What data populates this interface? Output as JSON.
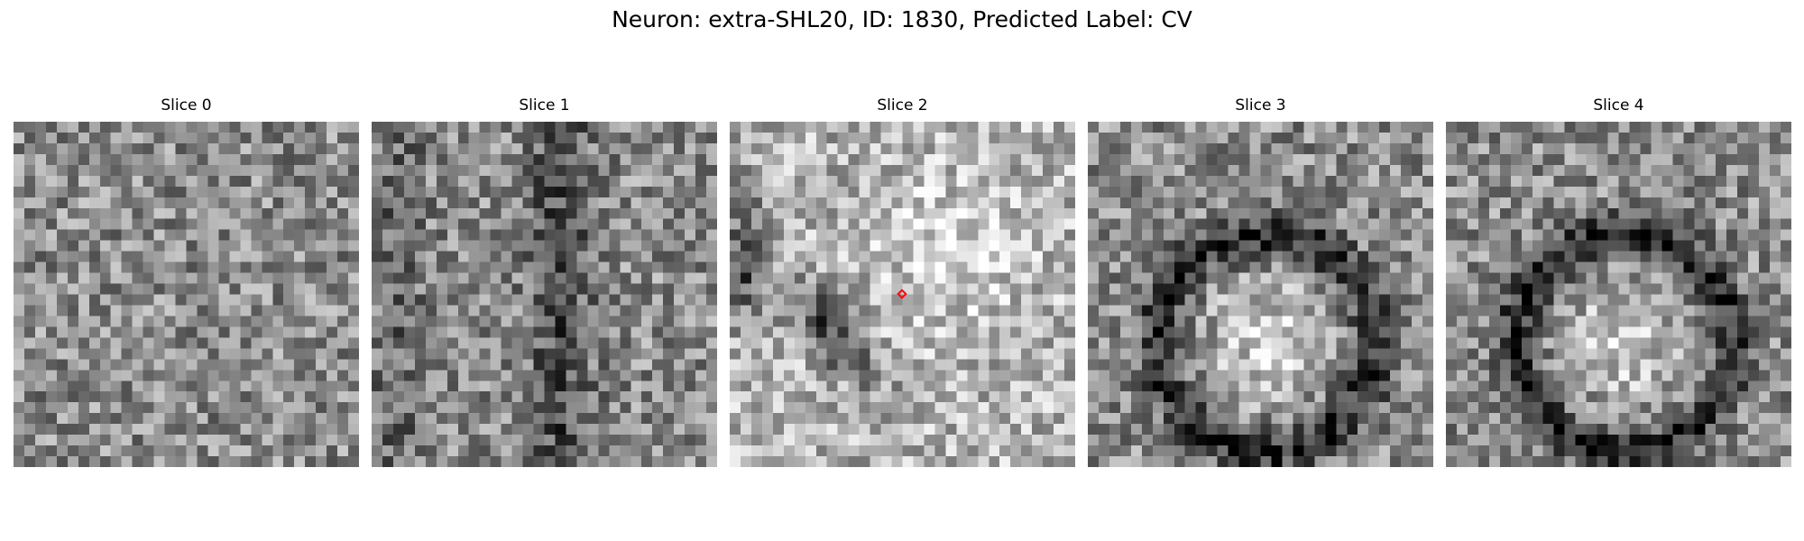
{
  "figure": {
    "title": "Neuron: extra-SHL20, ID: 1830, Predicted Label: CV"
  },
  "panels": [
    {
      "title": "Slice 0",
      "pattern": "noise",
      "seed": 11,
      "marker": false
    },
    {
      "title": "Slice 1",
      "pattern": "noise-dark-vertical",
      "seed": 23,
      "marker": false
    },
    {
      "title": "Slice 2",
      "pattern": "bright-blob-dark-band",
      "seed": 37,
      "marker": true
    },
    {
      "title": "Slice 3",
      "pattern": "dark-ring",
      "seed": 41,
      "marker": false
    },
    {
      "title": "Slice 4",
      "pattern": "dark-ring",
      "seed": 53,
      "marker": false
    }
  ],
  "colors": {
    "marker": "#ff0000"
  },
  "grid_size": 32
}
